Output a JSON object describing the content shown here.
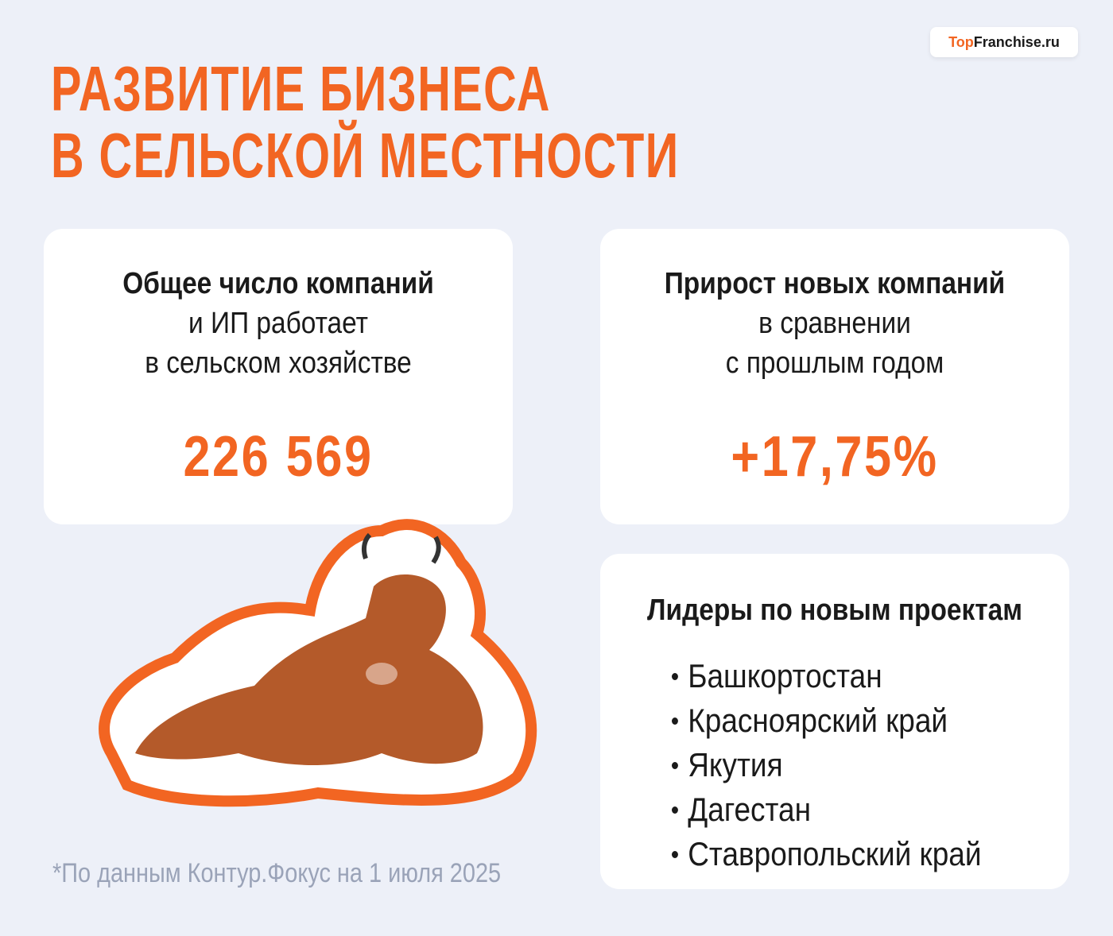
{
  "logo": {
    "accent": "Top",
    "rest": "Franchise.ru"
  },
  "title": {
    "lines": [
      "РАЗВИТИЕ БИЗНЕСА",
      "В СЕЛЬСКОЙ МЕСТНОСТИ"
    ]
  },
  "cards": [
    {
      "heading": "Общее число компаний",
      "lines": [
        "и ИП работает",
        "в сельском хозяйстве"
      ],
      "value": "226 569"
    },
    {
      "heading": "Прирост новых компаний",
      "lines": [
        "в сравнении",
        "с прошлым годом"
      ],
      "value": "+17,75%"
    }
  ],
  "leaders": {
    "heading": "Лидеры по новым проектам",
    "items": [
      "Башкортостан",
      "Красноярский край",
      "Якутия",
      "Дагестан",
      "Ставропольский край"
    ]
  },
  "footnote": "*По данным Контур.Фокус на 1 июля 2025"
}
